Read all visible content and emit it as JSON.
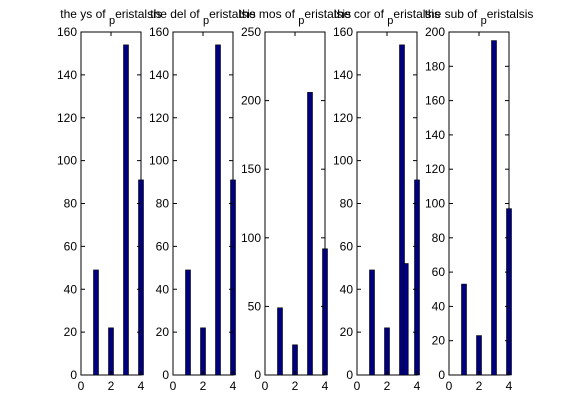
{
  "chart_data": [
    {
      "type": "bar",
      "title_main": "the ys of",
      "title_sub": "p",
      "title_rest": "eristalsis",
      "x": [
        1,
        2,
        3,
        4
      ],
      "values": [
        49,
        22,
        154,
        91
      ],
      "xlim": [
        0,
        4
      ],
      "ylim": [
        0,
        160
      ],
      "xticks": [
        0,
        2,
        4
      ],
      "yticks": [
        0,
        20,
        40,
        60,
        80,
        100,
        120,
        140,
        160
      ],
      "color": "#00007f"
    },
    {
      "type": "bar",
      "title_main": "the del of",
      "title_sub": "p",
      "title_rest": "eristalsis",
      "x": [
        1,
        2,
        3,
        4
      ],
      "values": [
        49,
        22,
        154,
        91
      ],
      "xlim": [
        0,
        4
      ],
      "ylim": [
        0,
        160
      ],
      "xticks": [
        0,
        2,
        4
      ],
      "yticks": [
        0,
        20,
        40,
        60,
        80,
        100,
        120,
        140,
        160
      ],
      "color": "#00007f"
    },
    {
      "type": "bar",
      "title_main": "the mos of",
      "title_sub": "p",
      "title_rest": "eristalsis",
      "x": [
        1,
        2,
        3,
        4
      ],
      "values": [
        49,
        22,
        206,
        92
      ],
      "xlim": [
        0,
        4
      ],
      "ylim": [
        0,
        250
      ],
      "xticks": [
        0,
        2,
        4
      ],
      "yticks": [
        0,
        50,
        100,
        150,
        200,
        250
      ],
      "color": "#00007f"
    },
    {
      "type": "bar",
      "title_main": "the cor of",
      "title_sub": "p",
      "title_rest": "eristalsis",
      "x": [
        1,
        2,
        3,
        3.25,
        4
      ],
      "values": [
        49,
        22,
        154,
        52,
        91
      ],
      "xlim": [
        0,
        4
      ],
      "ylim": [
        0,
        160
      ],
      "xticks": [
        0,
        2,
        4
      ],
      "yticks": [
        0,
        20,
        40,
        60,
        80,
        100,
        120,
        140,
        160
      ],
      "color": "#00007f"
    },
    {
      "type": "bar",
      "title_main": "the sub of",
      "title_sub": "p",
      "title_rest": "eristalsis",
      "x": [
        1,
        2,
        3,
        4
      ],
      "values": [
        53,
        23,
        195,
        97
      ],
      "xlim": [
        0,
        4
      ],
      "ylim": [
        0,
        200
      ],
      "xticks": [
        0,
        2,
        4
      ],
      "yticks": [
        0,
        20,
        40,
        60,
        80,
        100,
        120,
        140,
        160,
        180,
        200
      ],
      "color": "#00007f"
    }
  ]
}
